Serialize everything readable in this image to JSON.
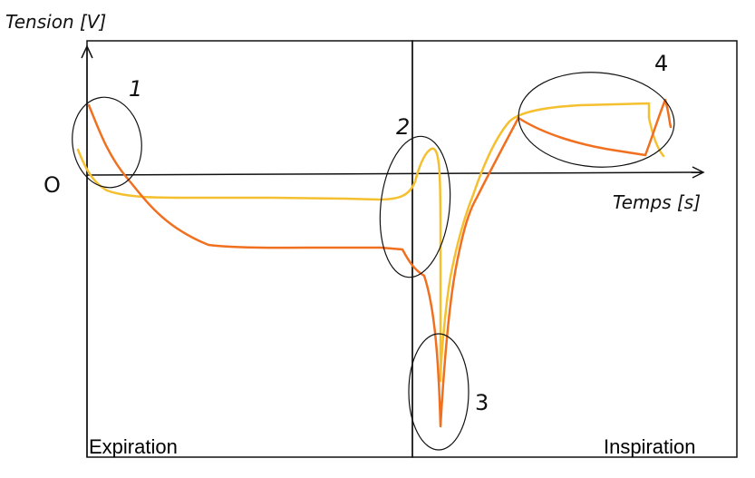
{
  "axes": {
    "y_label": "Tension [V]",
    "x_label": "Temps [s]",
    "origin_label": "O"
  },
  "phases": [
    {
      "label": "Expiration"
    },
    {
      "label": "Inspiration"
    }
  ],
  "markers": [
    {
      "label": "1"
    },
    {
      "label": "2"
    },
    {
      "label": "3"
    },
    {
      "label": "4"
    }
  ],
  "colors": {
    "curve_orange": "#f07020",
    "curve_yellow": "#f5c030",
    "ink": "#111111"
  }
}
